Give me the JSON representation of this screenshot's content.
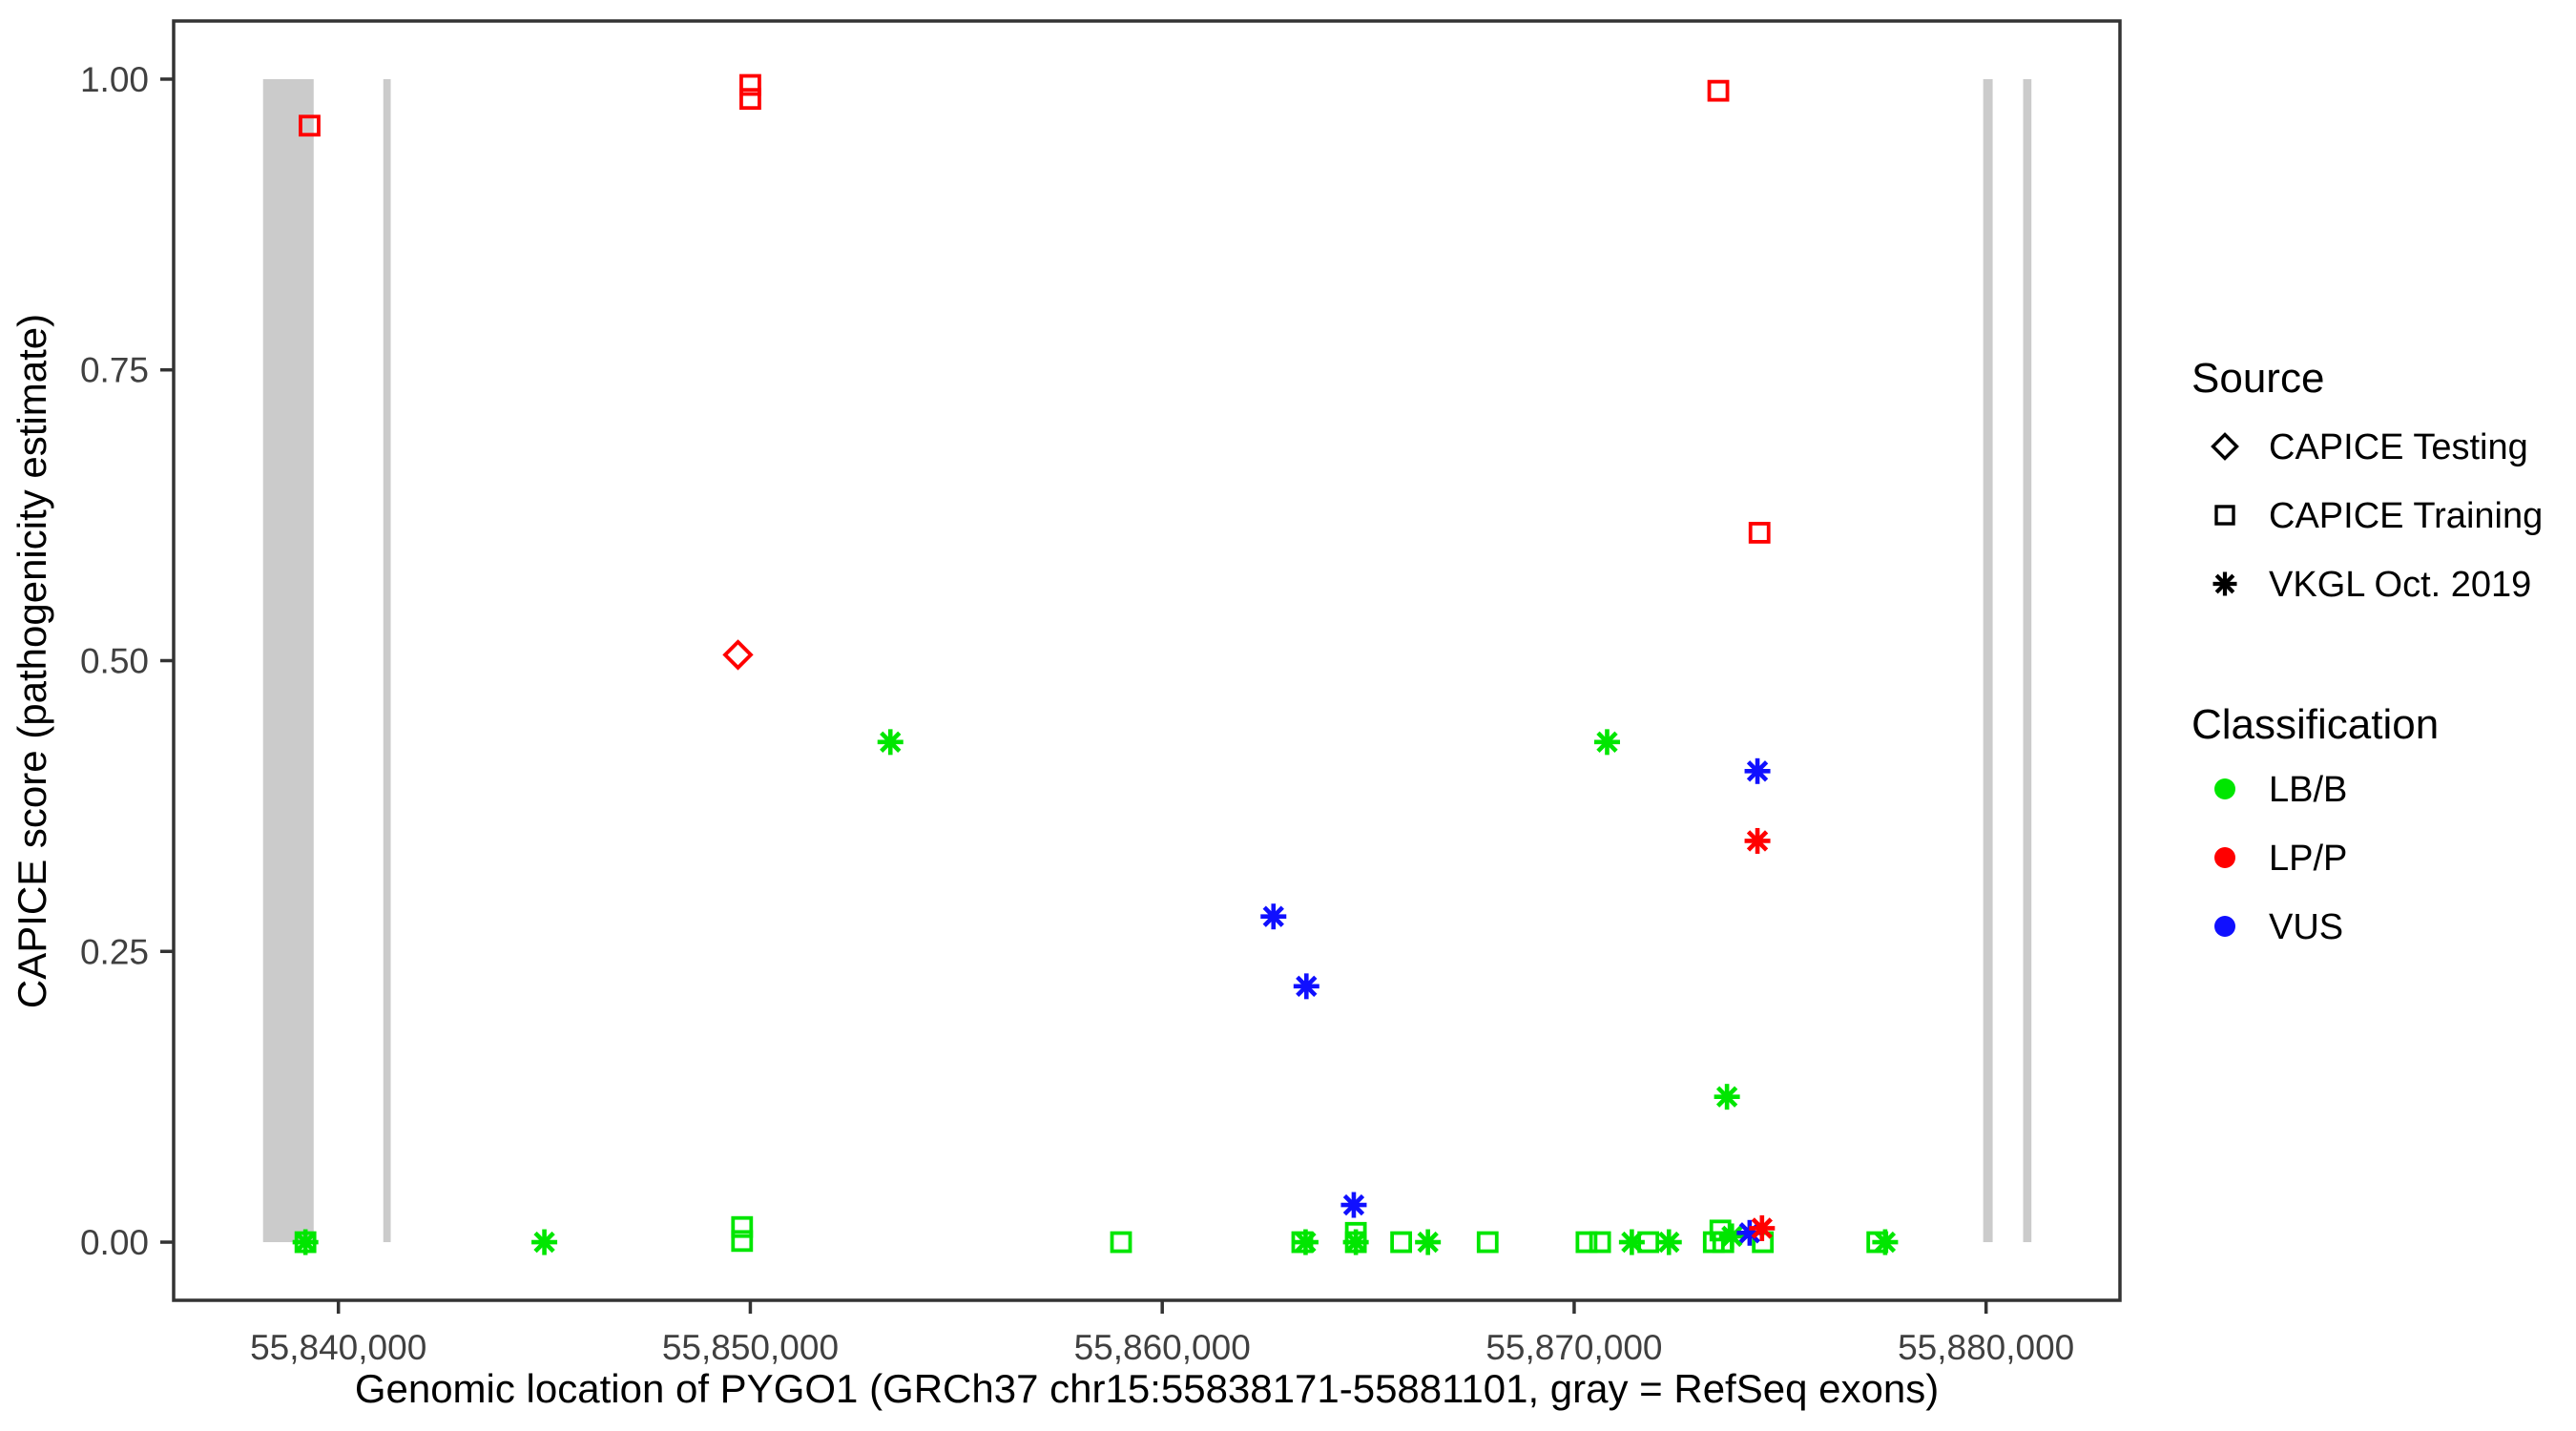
{
  "figure": {
    "kind": "scatter-plot",
    "background": "#ffffff"
  },
  "colors": {
    "lb_b": "#00e600",
    "lp_p": "#ff0000",
    "vus": "#1010ff",
    "exon": "#cbcbcb",
    "axis": "#333333",
    "tick_label": "#404040",
    "legend_marker": "#000000"
  },
  "legend": {
    "source": {
      "title": "Source",
      "items": [
        {
          "label": "CAPICE Testing",
          "shape": "diamond"
        },
        {
          "label": "CAPICE Training",
          "shape": "square"
        },
        {
          "label": "VKGL Oct. 2019",
          "shape": "asterisk"
        }
      ]
    },
    "classification": {
      "title": "Classification",
      "items": [
        {
          "label": "LB/B",
          "key": "LB/B",
          "color": "#00e600"
        },
        {
          "label": "LP/P",
          "key": "LP/P",
          "color": "#ff0000"
        },
        {
          "label": "VUS",
          "key": "VUS",
          "color": "#1010ff"
        }
      ]
    }
  },
  "chart_data": {
    "type": "scatter",
    "xlabel": "Genomic location of PYGO1 (GRCh37 chr15:55838171-55881101, gray = RefSeq exons)",
    "ylabel": "CAPICE score (pathogenicity estimate)",
    "xlim": [
      55836000,
      55883250
    ],
    "ylim": [
      -0.05,
      1.05
    ],
    "grid": false,
    "legend_position": "right",
    "x_ticks": [
      {
        "value": 55840000,
        "label": "55,840,000"
      },
      {
        "value": 55850000,
        "label": "55,850,000"
      },
      {
        "value": 55860000,
        "label": "55,860,000"
      },
      {
        "value": 55870000,
        "label": "55,870,000"
      },
      {
        "value": 55880000,
        "label": "55,880,000"
      }
    ],
    "y_ticks": [
      {
        "value": 0.0,
        "label": "0.00"
      },
      {
        "value": 0.25,
        "label": "0.25"
      },
      {
        "value": 0.5,
        "label": "0.50"
      },
      {
        "value": 0.75,
        "label": "0.75"
      },
      {
        "value": 1.0,
        "label": "1.00"
      }
    ],
    "exon_y_range": [
      0,
      1
    ],
    "exons": [
      [
        55838171,
        55839400
      ],
      [
        55841090,
        55841270
      ],
      [
        55879930,
        55880160
      ],
      [
        55880900,
        55881101
      ]
    ],
    "series": [
      {
        "name": "CAPICE Training",
        "shape": "square",
        "points": [
          [
            55839200,
            0.0,
            "LB/B"
          ],
          [
            55849800,
            0.013,
            "LB/B"
          ],
          [
            55849800,
            0.001,
            "LB/B"
          ],
          [
            55859000,
            0.0,
            "LB/B"
          ],
          [
            55863400,
            0.0,
            "LB/B"
          ],
          [
            55864700,
            0.008,
            "LB/B"
          ],
          [
            55864700,
            0.0,
            "LB/B"
          ],
          [
            55865800,
            0.0,
            "LB/B"
          ],
          [
            55867900,
            0.0,
            "LB/B"
          ],
          [
            55870300,
            0.0,
            "LB/B"
          ],
          [
            55870630,
            0.0,
            "LB/B"
          ],
          [
            55871800,
            0.0,
            "LB/B"
          ],
          [
            55873390,
            0.0,
            "LB/B"
          ],
          [
            55873550,
            0.01,
            "LB/B"
          ],
          [
            55873620,
            0.0,
            "LB/B"
          ],
          [
            55874580,
            0.0,
            "LB/B"
          ],
          [
            55877360,
            0.0,
            "LB/B"
          ],
          [
            55839300,
            0.96,
            "LP/P"
          ],
          [
            55850000,
            0.995,
            "LP/P"
          ],
          [
            55850000,
            0.983,
            "LP/P"
          ],
          [
            55873500,
            0.99,
            "LP/P"
          ],
          [
            55874500,
            0.61,
            "LP/P"
          ]
        ]
      },
      {
        "name": "CAPICE Testing",
        "shape": "diamond",
        "points": [
          [
            55849700,
            0.505,
            "LP/P"
          ]
        ]
      },
      {
        "name": "VKGL Oct. 2019",
        "shape": "asterisk",
        "points": [
          [
            55839200,
            0.0,
            "LB/B"
          ],
          [
            55845000,
            0.0,
            "LB/B"
          ],
          [
            55853400,
            0.43,
            "LB/B"
          ],
          [
            55863480,
            0.0,
            "LB/B"
          ],
          [
            55864700,
            0.0,
            "LB/B"
          ],
          [
            55866450,
            0.0,
            "LB/B"
          ],
          [
            55870800,
            0.43,
            "LB/B"
          ],
          [
            55871400,
            0.0,
            "LB/B"
          ],
          [
            55872300,
            0.0,
            "LB/B"
          ],
          [
            55873710,
            0.125,
            "LB/B"
          ],
          [
            55873830,
            0.005,
            "LB/B"
          ],
          [
            55877550,
            0.0,
            "LB/B"
          ],
          [
            55862700,
            0.28,
            "VUS"
          ],
          [
            55863500,
            0.22,
            "VUS"
          ],
          [
            55864650,
            0.032,
            "VUS"
          ],
          [
            55874450,
            0.405,
            "VUS"
          ],
          [
            55874260,
            0.008,
            "VUS"
          ],
          [
            55874450,
            0.345,
            "LP/P"
          ],
          [
            55874560,
            0.012,
            "LP/P"
          ]
        ]
      }
    ]
  }
}
